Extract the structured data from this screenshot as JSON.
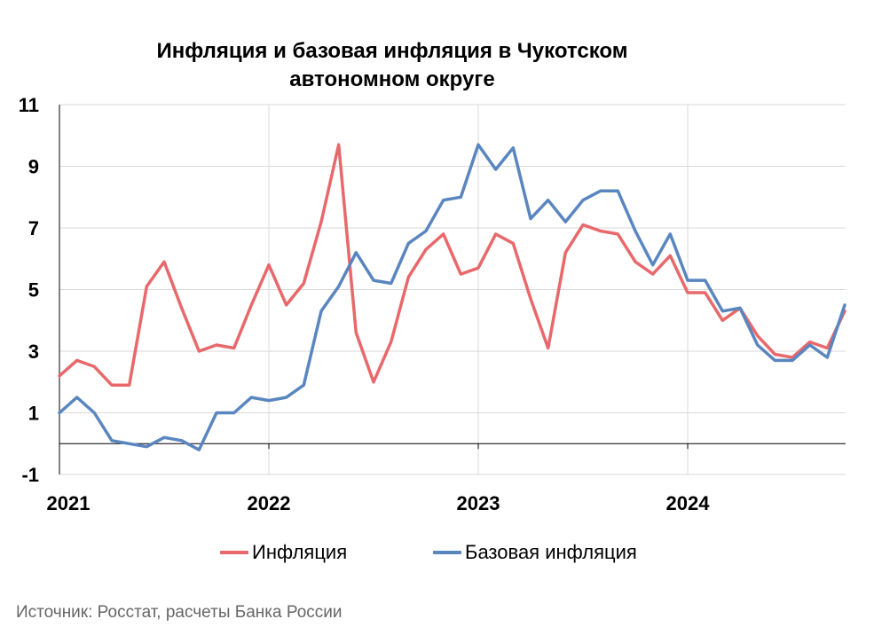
{
  "title": {
    "line1": "Инфляция и базовая инфляция в Чукотском",
    "line2": "автономном округе"
  },
  "legend": {
    "inflation": "Инфляция",
    "core": "Базовая инфляция"
  },
  "source": "Источник: Росстат, расчеты Банка России",
  "colors": {
    "inflation": "#e8686b",
    "core": "#5a86bf",
    "grid": "#d9d9d9",
    "axis": "#000000"
  },
  "chart_data": {
    "type": "line",
    "title": "Инфляция и базовая инфляция в Чукотском автономном округе",
    "xlabel": "",
    "ylabel": "",
    "x_tick_labels": [
      "2021",
      "2022",
      "2023",
      "2024"
    ],
    "y_ticks": [
      -1,
      1,
      3,
      5,
      7,
      9,
      11
    ],
    "ylim": [
      -1,
      11
    ],
    "x_start": "2021-01",
    "grid": "horizontal and at year starts",
    "legend_position": "bottom",
    "series": [
      {
        "name": "Инфляция",
        "color": "#e8686b",
        "values": [
          2.2,
          2.7,
          2.5,
          1.9,
          1.9,
          5.1,
          5.9,
          4.4,
          3.0,
          3.2,
          3.1,
          4.5,
          5.8,
          4.5,
          5.2,
          7.2,
          9.7,
          3.6,
          2.0,
          3.3,
          5.4,
          6.3,
          6.8,
          5.5,
          5.7,
          6.8,
          6.5,
          4.7,
          3.1,
          6.2,
          7.1,
          6.9,
          6.8,
          5.9,
          5.5,
          6.1,
          4.9,
          4.9,
          4.0,
          4.4,
          3.5,
          2.9,
          2.8,
          3.3,
          3.1,
          4.3
        ]
      },
      {
        "name": "Базовая инфляция",
        "color": "#5a86bf",
        "values": [
          1.0,
          1.5,
          1.0,
          0.1,
          0.0,
          -0.1,
          0.2,
          0.1,
          -0.2,
          1.0,
          1.0,
          1.5,
          1.4,
          1.5,
          1.9,
          4.3,
          5.1,
          6.2,
          5.3,
          5.2,
          6.5,
          6.9,
          7.9,
          8.0,
          9.7,
          8.9,
          9.6,
          7.3,
          7.9,
          7.2,
          7.9,
          8.2,
          8.2,
          6.9,
          5.8,
          6.8,
          5.3,
          5.3,
          4.3,
          4.4,
          3.2,
          2.7,
          2.7,
          3.2,
          2.8,
          4.5
        ]
      }
    ]
  }
}
